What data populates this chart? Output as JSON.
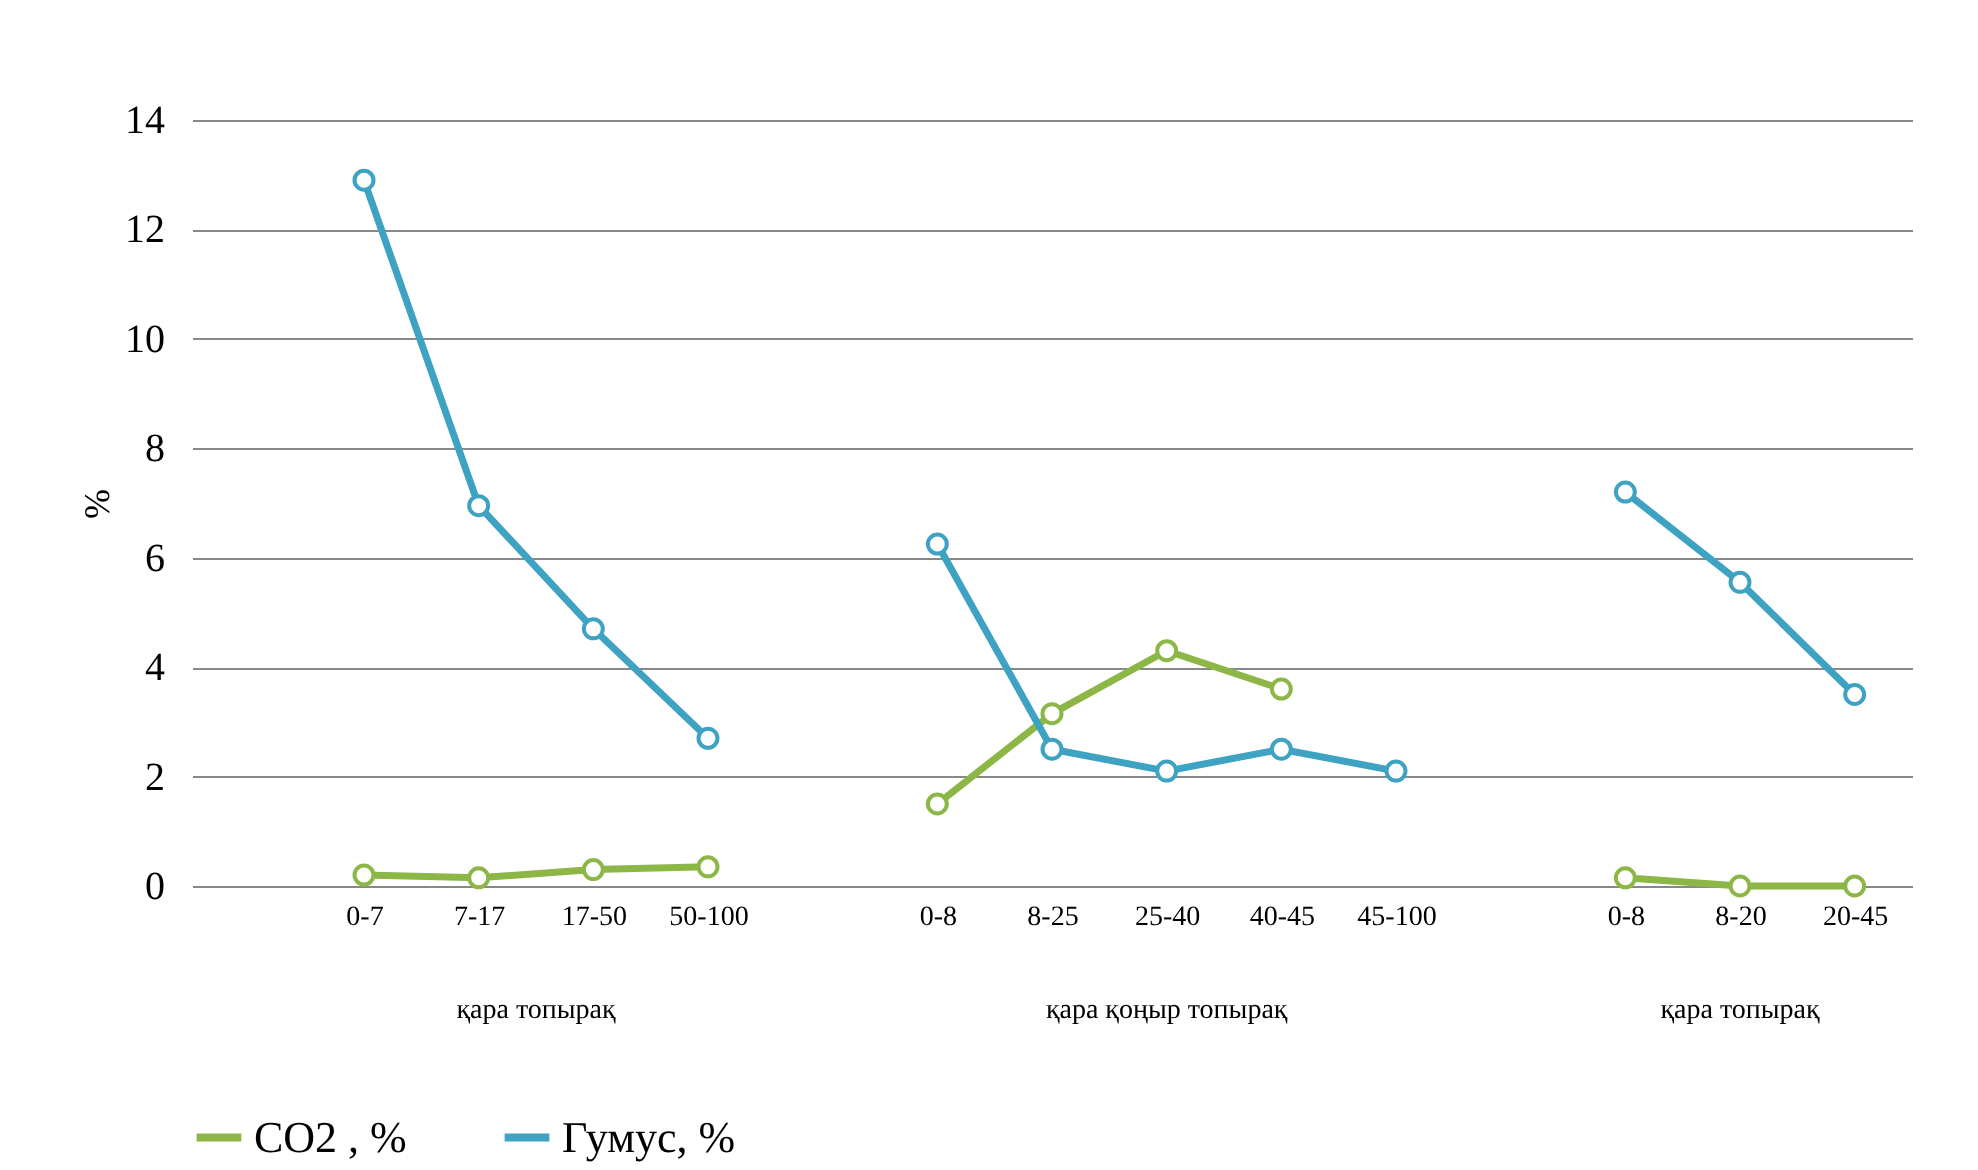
{
  "chart_data": {
    "type": "line",
    "ylabel": "%",
    "categories": [
      null,
      "0-7",
      "7-17",
      "17-50",
      "50-100",
      null,
      "0-8",
      "8-25",
      "25-40",
      "40-45",
      "45-100",
      null,
      "0-8",
      "8-20",
      "20-45"
    ],
    "series": [
      {
        "name": "CO2 , %",
        "color": "#8cb746",
        "values": [
          null,
          0.2,
          0.15,
          0.3,
          0.35,
          null,
          1.5,
          3.15,
          4.3,
          3.6,
          null,
          null,
          0.15,
          0,
          0
        ]
      },
      {
        "name": "Гумус,   %",
        "color": "#3ea2c3",
        "values": [
          null,
          12.9,
          6.95,
          4.7,
          2.7,
          null,
          6.25,
          2.5,
          2.1,
          2.5,
          2.1,
          null,
          7.2,
          5.55,
          3.5
        ]
      }
    ],
    "annotations": [
      "қара топырақ",
      "қара қоңыр топырақ",
      "қара  топырақ"
    ],
    "ylim": [
      0,
      14
    ],
    "yticks": [
      0,
      2,
      4,
      6,
      8,
      10,
      12,
      14
    ],
    "grid": "y",
    "legend": "bottom",
    "marker": "circle",
    "line_style": "solid"
  }
}
